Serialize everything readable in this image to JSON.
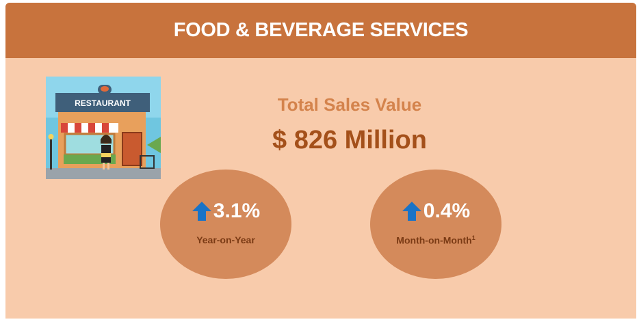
{
  "header": {
    "title": "FOOD & BEVERAGE SERVICES"
  },
  "illustration": {
    "sign": "RESTAURANT"
  },
  "summary": {
    "label": "Total Sales Value",
    "value": "$ 826 Million"
  },
  "metrics": [
    {
      "value": "3.1%",
      "label": "Year-on-Year"
    },
    {
      "value": "0.4%",
      "label": "Month-on-Month",
      "footnote": "1"
    }
  ]
}
